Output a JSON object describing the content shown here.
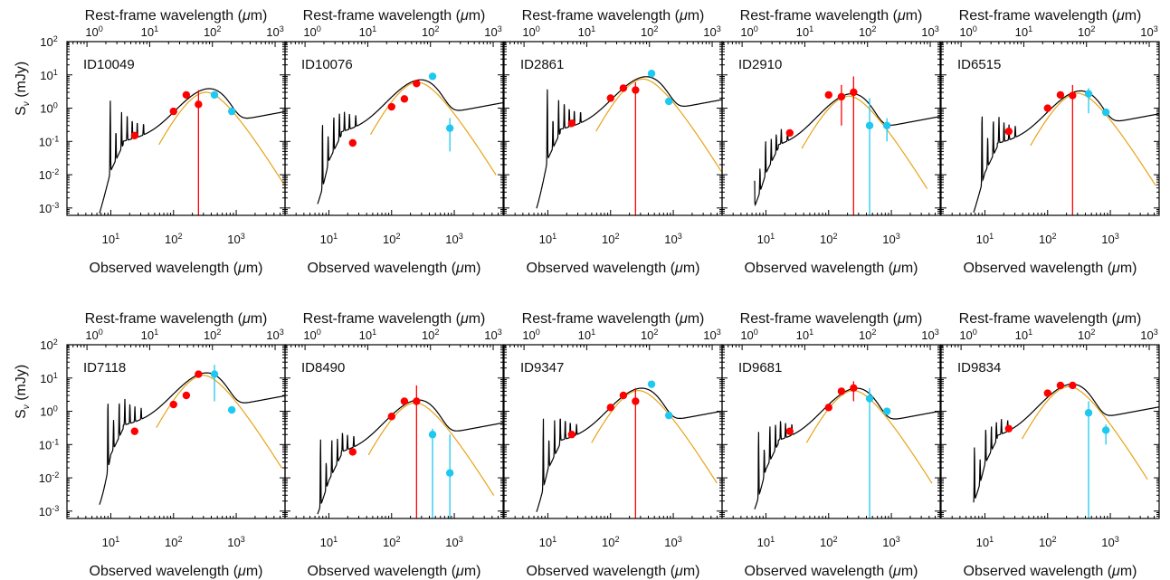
{
  "figure": {
    "top_axis_label": "Rest-frame wavelength (μm)",
    "bottom_axis_label": "Observed wavelength (μm)",
    "y_axis_label": "S_ν (mJy)"
  },
  "colors": {
    "model_sed": "#000000",
    "greybody": "#e8a317",
    "data_red": "#ff0000",
    "data_cyan": "#1ec8f0",
    "frame": "#000000"
  },
  "chart_data": [
    {
      "id": "ID10049",
      "title": "ID10049",
      "type": "scatter",
      "x_scale": "log",
      "y_scale": "log",
      "xlim_obs_um": [
        2,
        6000
      ],
      "ylim_mJy": [
        0.0006,
        100
      ],
      "top_axis_ticks": [
        "10^0",
        "10^1",
        "10^2",
        "10^3"
      ],
      "bottom_axis_ticks": [
        "10^1",
        "10^2",
        "10^3"
      ],
      "y_ticks": [
        "10^-3",
        "10^-2",
        "10^-1",
        "10^0",
        "10^1",
        "10^2"
      ],
      "sed_peak": {
        "wavelength_um": 330,
        "flux_mJy": 3.5
      },
      "greybody_peak": {
        "wavelength_um": 330,
        "flux_mJy": 3.0
      },
      "points": [
        {
          "band": "24",
          "x": 24,
          "y": 0.15,
          "color": "red"
        },
        {
          "band": "100",
          "x": 100,
          "y": 0.8,
          "color": "red"
        },
        {
          "band": "160",
          "x": 160,
          "y": 2.5,
          "color": "red"
        },
        {
          "band": "250",
          "x": 250,
          "y": 1.3,
          "color": "red",
          "errbar": [
            0.0006,
            3.5
          ]
        },
        {
          "band": "450",
          "x": 450,
          "y": 2.5,
          "color": "cyan"
        },
        {
          "band": "850",
          "x": 850,
          "y": 0.8,
          "color": "cyan"
        }
      ]
    },
    {
      "id": "ID10076",
      "title": "ID10076",
      "type": "scatter",
      "x_scale": "log",
      "y_scale": "log",
      "xlim_obs_um": [
        2,
        6000
      ],
      "ylim_mJy": [
        0.0006,
        100
      ],
      "top_axis_ticks": [
        "10^0",
        "10^1",
        "10^2",
        "10^3"
      ],
      "bottom_axis_ticks": [
        "10^1",
        "10^2",
        "10^3"
      ],
      "y_ticks": [
        "10^-3",
        "10^-2",
        "10^-1",
        "10^0",
        "10^1",
        "10^2"
      ],
      "sed_peak": {
        "wavelength_um": 260,
        "flux_mJy": 6.5
      },
      "greybody_peak": {
        "wavelength_um": 260,
        "flux_mJy": 6.0
      },
      "points": [
        {
          "band": "24",
          "x": 24,
          "y": 0.09,
          "color": "red"
        },
        {
          "band": "100",
          "x": 100,
          "y": 1.1,
          "color": "red"
        },
        {
          "band": "160",
          "x": 160,
          "y": 1.9,
          "color": "red"
        },
        {
          "band": "250",
          "x": 250,
          "y": 5.5,
          "color": "red"
        },
        {
          "band": "450",
          "x": 450,
          "y": 9,
          "color": "cyan"
        },
        {
          "band": "850",
          "x": 850,
          "y": 0.25,
          "color": "cyan",
          "errbar": [
            0.05,
            0.5
          ]
        }
      ]
    },
    {
      "id": "ID2861",
      "title": "ID2861",
      "type": "scatter",
      "x_scale": "log",
      "y_scale": "log",
      "xlim_obs_um": [
        2,
        6000
      ],
      "ylim_mJy": [
        0.0006,
        100
      ],
      "top_axis_ticks": [
        "10^0",
        "10^1",
        "10^2",
        "10^3"
      ],
      "bottom_axis_ticks": [
        "10^1",
        "10^2",
        "10^3"
      ],
      "y_ticks": [
        "10^-3",
        "10^-2",
        "10^-1",
        "10^0",
        "10^1",
        "10^2"
      ],
      "sed_peak": {
        "wavelength_um": 330,
        "flux_mJy": 8
      },
      "greybody_peak": {
        "wavelength_um": 330,
        "flux_mJy": 7.5
      },
      "points": [
        {
          "band": "24",
          "x": 24,
          "y": 0.35,
          "color": "red"
        },
        {
          "band": "100",
          "x": 100,
          "y": 2.0,
          "color": "red"
        },
        {
          "band": "160",
          "x": 160,
          "y": 4.0,
          "color": "red"
        },
        {
          "band": "250",
          "x": 250,
          "y": 3.5,
          "color": "red",
          "errbar": [
            0.0006,
            6
          ]
        },
        {
          "band": "450",
          "x": 450,
          "y": 11,
          "color": "cyan"
        },
        {
          "band": "850",
          "x": 850,
          "y": 1.6,
          "color": "cyan"
        }
      ]
    },
    {
      "id": "ID2910",
      "title": "ID2910",
      "type": "scatter",
      "x_scale": "log",
      "y_scale": "log",
      "xlim_obs_um": [
        2,
        6000
      ],
      "ylim_mJy": [
        0.0006,
        100
      ],
      "top_axis_ticks": [
        "10^0",
        "10^1",
        "10^2",
        "10^3"
      ],
      "bottom_axis_ticks": [
        "10^1",
        "10^2",
        "10^3"
      ],
      "y_ticks": [
        "10^-3",
        "10^-2",
        "10^-1",
        "10^0",
        "10^1",
        "10^2"
      ],
      "sed_peak": {
        "wavelength_um": 210,
        "flux_mJy": 2.5
      },
      "greybody_peak": {
        "wavelength_um": 210,
        "flux_mJy": 2.3
      },
      "points": [
        {
          "band": "24",
          "x": 24,
          "y": 0.18,
          "color": "red"
        },
        {
          "band": "100",
          "x": 100,
          "y": 2.5,
          "color": "red"
        },
        {
          "band": "160",
          "x": 160,
          "y": 2.2,
          "color": "red",
          "errbar": [
            0.3,
            5
          ]
        },
        {
          "band": "250",
          "x": 250,
          "y": 3.0,
          "color": "red",
          "errbar": [
            0.0006,
            9
          ]
        },
        {
          "band": "450",
          "x": 450,
          "y": 0.3,
          "color": "cyan",
          "errbar": [
            0.0006,
            2
          ]
        },
        {
          "band": "850",
          "x": 850,
          "y": 0.3,
          "color": "cyan",
          "errbar": [
            0.1,
            0.5
          ]
        }
      ]
    },
    {
      "id": "ID6515",
      "title": "ID6515",
      "type": "scatter",
      "x_scale": "log",
      "y_scale": "log",
      "xlim_obs_um": [
        2,
        6000
      ],
      "ylim_mJy": [
        0.0006,
        100
      ],
      "top_axis_ticks": [
        "10^0",
        "10^1",
        "10^2",
        "10^3"
      ],
      "bottom_axis_ticks": [
        "10^1",
        "10^2",
        "10^3"
      ],
      "y_ticks": [
        "10^-3",
        "10^-2",
        "10^-1",
        "10^0",
        "10^1",
        "10^2"
      ],
      "sed_peak": {
        "wavelength_um": 300,
        "flux_mJy": 3.0
      },
      "greybody_peak": {
        "wavelength_um": 300,
        "flux_mJy": 2.8
      },
      "points": [
        {
          "band": "24",
          "x": 24,
          "y": 0.2,
          "color": "red"
        },
        {
          "band": "100",
          "x": 100,
          "y": 1.0,
          "color": "red"
        },
        {
          "band": "160",
          "x": 160,
          "y": 2.5,
          "color": "red"
        },
        {
          "band": "250",
          "x": 250,
          "y": 2.4,
          "color": "red",
          "errbar": [
            0.0006,
            5
          ]
        },
        {
          "band": "450",
          "x": 450,
          "y": 2.7,
          "color": "cyan",
          "errbar": [
            0.7,
            4
          ]
        },
        {
          "band": "850",
          "x": 850,
          "y": 0.75,
          "color": "cyan"
        }
      ]
    },
    {
      "id": "ID7118",
      "title": "ID7118",
      "type": "scatter",
      "x_scale": "log",
      "y_scale": "log",
      "xlim_obs_um": [
        2,
        6000
      ],
      "ylim_mJy": [
        0.0006,
        100
      ],
      "top_axis_ticks": [
        "10^0",
        "10^1",
        "10^2",
        "10^3"
      ],
      "bottom_axis_ticks": [
        "10^1",
        "10^2",
        "10^3"
      ],
      "y_ticks": [
        "10^-3",
        "10^-2",
        "10^-1",
        "10^0",
        "10^1",
        "10^2"
      ],
      "sed_peak": {
        "wavelength_um": 300,
        "flux_mJy": 13
      },
      "greybody_peak": {
        "wavelength_um": 300,
        "flux_mJy": 12
      },
      "points": [
        {
          "band": "24",
          "x": 24,
          "y": 0.25,
          "color": "red"
        },
        {
          "band": "100",
          "x": 100,
          "y": 1.6,
          "color": "red"
        },
        {
          "band": "160",
          "x": 160,
          "y": 3.0,
          "color": "red"
        },
        {
          "band": "250",
          "x": 250,
          "y": 13,
          "color": "red"
        },
        {
          "band": "450",
          "x": 450,
          "y": 13,
          "color": "cyan",
          "errbar": [
            2,
            25
          ]
        },
        {
          "band": "850",
          "x": 850,
          "y": 1.1,
          "color": "cyan"
        }
      ]
    },
    {
      "id": "ID8490",
      "title": "ID8490",
      "type": "scatter",
      "x_scale": "log",
      "y_scale": "log",
      "xlim_obs_um": [
        2,
        6000
      ],
      "ylim_mJy": [
        0.0006,
        100
      ],
      "top_axis_ticks": [
        "10^0",
        "10^1",
        "10^2",
        "10^3"
      ],
      "bottom_axis_ticks": [
        "10^1",
        "10^2",
        "10^3"
      ],
      "y_ticks": [
        "10^-3",
        "10^-2",
        "10^-1",
        "10^0",
        "10^1",
        "10^2"
      ],
      "sed_peak": {
        "wavelength_um": 240,
        "flux_mJy": 2.0
      },
      "greybody_peak": {
        "wavelength_um": 240,
        "flux_mJy": 1.8
      },
      "points": [
        {
          "band": "24",
          "x": 24,
          "y": 0.06,
          "color": "red"
        },
        {
          "band": "100",
          "x": 100,
          "y": 0.7,
          "color": "red"
        },
        {
          "band": "160",
          "x": 160,
          "y": 2.0,
          "color": "red"
        },
        {
          "band": "250",
          "x": 250,
          "y": 2.0,
          "color": "red",
          "errbar": [
            0.0006,
            6
          ]
        },
        {
          "band": "450",
          "x": 450,
          "y": 0.2,
          "color": "cyan",
          "errbar": [
            0.0006,
            0.3
          ]
        },
        {
          "band": "850",
          "x": 850,
          "y": 0.014,
          "color": "cyan",
          "errbar": [
            0.0006,
            0.2
          ]
        }
      ]
    },
    {
      "id": "ID9347",
      "title": "ID9347",
      "type": "scatter",
      "x_scale": "log",
      "y_scale": "log",
      "xlim_obs_um": [
        2,
        6000
      ],
      "ylim_mJy": [
        0.0006,
        100
      ],
      "top_axis_ticks": [
        "10^0",
        "10^1",
        "10^2",
        "10^3"
      ],
      "bottom_axis_ticks": [
        "10^1",
        "10^2",
        "10^3"
      ],
      "y_ticks": [
        "10^-3",
        "10^-2",
        "10^-1",
        "10^0",
        "10^1",
        "10^2"
      ],
      "sed_peak": {
        "wavelength_um": 280,
        "flux_mJy": 4.5
      },
      "greybody_peak": {
        "wavelength_um": 280,
        "flux_mJy": 4.2
      },
      "points": [
        {
          "band": "24",
          "x": 24,
          "y": 0.2,
          "color": "red"
        },
        {
          "band": "100",
          "x": 100,
          "y": 1.3,
          "color": "red"
        },
        {
          "band": "160",
          "x": 160,
          "y": 3.0,
          "color": "red"
        },
        {
          "band": "250",
          "x": 250,
          "y": 2.0,
          "color": "red",
          "errbar": [
            0.0006,
            5
          ]
        },
        {
          "band": "450",
          "x": 450,
          "y": 6.5,
          "color": "cyan"
        },
        {
          "band": "850",
          "x": 850,
          "y": 0.75,
          "color": "cyan"
        }
      ]
    },
    {
      "id": "ID9681",
      "title": "ID9681",
      "type": "scatter",
      "x_scale": "log",
      "y_scale": "log",
      "xlim_obs_um": [
        2,
        6000
      ],
      "ylim_mJy": [
        0.0006,
        100
      ],
      "top_axis_ticks": [
        "10^0",
        "10^1",
        "10^2",
        "10^3"
      ],
      "bottom_axis_ticks": [
        "10^1",
        "10^2",
        "10^3"
      ],
      "y_ticks": [
        "10^-3",
        "10^-2",
        "10^-1",
        "10^0",
        "10^1",
        "10^2"
      ],
      "sed_peak": {
        "wavelength_um": 250,
        "flux_mJy": 4.5
      },
      "greybody_peak": {
        "wavelength_um": 250,
        "flux_mJy": 4.2
      },
      "points": [
        {
          "band": "24",
          "x": 24,
          "y": 0.25,
          "color": "red"
        },
        {
          "band": "100",
          "x": 100,
          "y": 1.3,
          "color": "red"
        },
        {
          "band": "160",
          "x": 160,
          "y": 4.0,
          "color": "red"
        },
        {
          "band": "250",
          "x": 250,
          "y": 5.0,
          "color": "red",
          "errbar": [
            2,
            8
          ]
        },
        {
          "band": "450",
          "x": 450,
          "y": 2.4,
          "color": "cyan",
          "errbar": [
            0.0006,
            5
          ]
        },
        {
          "band": "850",
          "x": 850,
          "y": 1.0,
          "color": "cyan"
        }
      ]
    },
    {
      "id": "ID9834",
      "title": "ID9834",
      "type": "scatter",
      "x_scale": "log",
      "y_scale": "log",
      "xlim_obs_um": [
        2,
        6000
      ],
      "ylim_mJy": [
        0.0006,
        100
      ],
      "top_axis_ticks": [
        "10^0",
        "10^1",
        "10^2",
        "10^3"
      ],
      "bottom_axis_ticks": [
        "10^1",
        "10^2",
        "10^3"
      ],
      "y_ticks": [
        "10^-3",
        "10^-2",
        "10^-1",
        "10^0",
        "10^1",
        "10^2"
      ],
      "sed_peak": {
        "wavelength_um": 220,
        "flux_mJy": 6.0
      },
      "greybody_peak": {
        "wavelength_um": 220,
        "flux_mJy": 5.5
      },
      "points": [
        {
          "band": "24",
          "x": 24,
          "y": 0.3,
          "color": "red"
        },
        {
          "band": "100",
          "x": 100,
          "y": 3.5,
          "color": "red"
        },
        {
          "band": "160",
          "x": 160,
          "y": 6.0,
          "color": "red"
        },
        {
          "band": "250",
          "x": 250,
          "y": 6.0,
          "color": "red"
        },
        {
          "band": "450",
          "x": 450,
          "y": 0.9,
          "color": "cyan",
          "errbar": [
            0.0006,
            2
          ]
        },
        {
          "band": "850",
          "x": 850,
          "y": 0.27,
          "color": "cyan",
          "errbar": [
            0.1,
            0.4
          ]
        }
      ]
    }
  ]
}
